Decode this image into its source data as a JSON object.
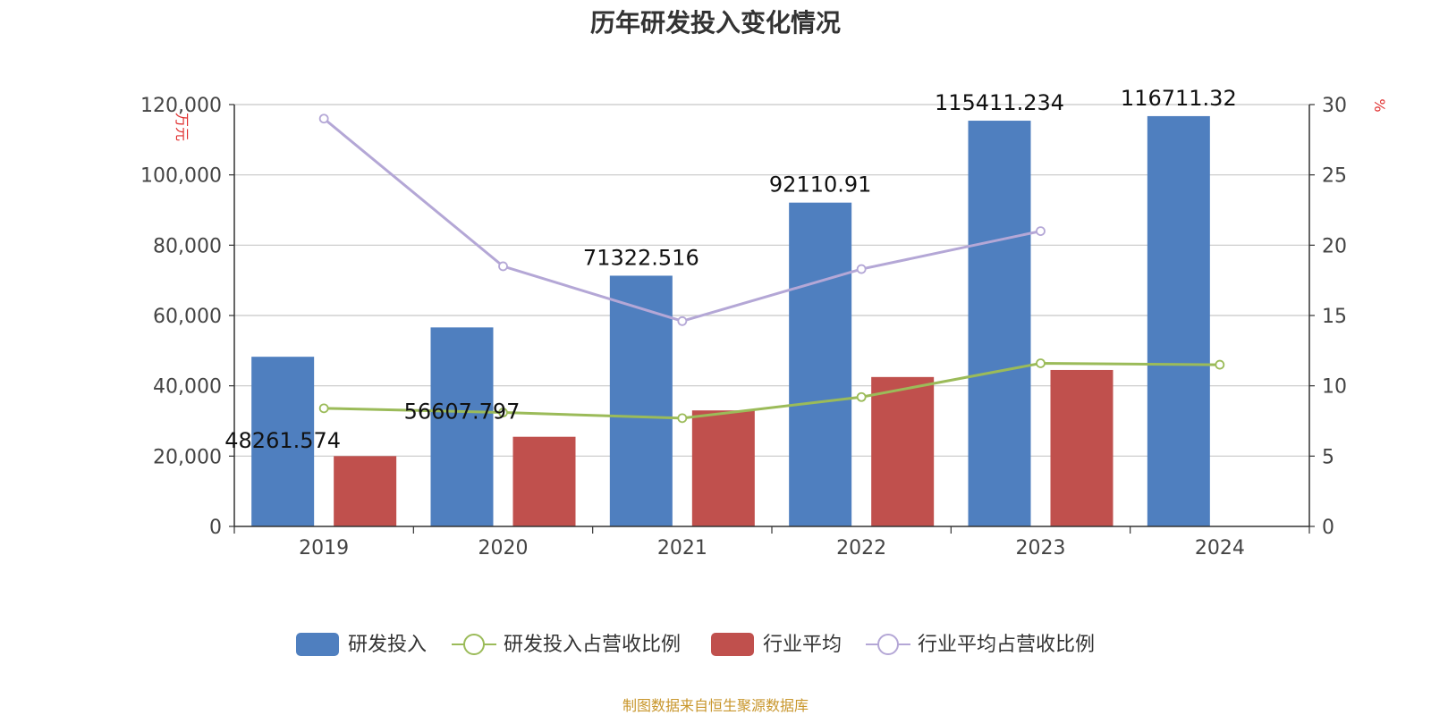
{
  "source": "制图数据来自恒生聚源数据库",
  "chart_data": {
    "type": "bar",
    "title": "历年研发投入变化情况",
    "categories": [
      "2019",
      "2020",
      "2021",
      "2022",
      "2023",
      "2024"
    ],
    "y_left": {
      "label": "万元",
      "ylim": [
        0,
        120000
      ],
      "ticks": [
        "0",
        "20,000",
        "40,000",
        "60,000",
        "80,000",
        "100,000",
        "120,000"
      ],
      "tick_values": [
        0,
        20000,
        40000,
        60000,
        80000,
        100000,
        120000
      ]
    },
    "y_right": {
      "label": "%",
      "ylim": [
        0,
        30
      ],
      "ticks": [
        "0",
        "5",
        "10",
        "15",
        "20",
        "25",
        "30"
      ],
      "tick_values": [
        0,
        5,
        10,
        15,
        20,
        25,
        30
      ]
    },
    "grid": true,
    "legend_position": "bottom",
    "series": [
      {
        "name": "研发投入",
        "type": "bar",
        "axis": "left",
        "color": "#4f7fbf",
        "values": [
          48261.574,
          56607.797,
          71322.516,
          92110.91,
          115411.234,
          116711.32
        ],
        "labels": [
          "48261.574",
          "56607.797",
          "71322.516",
          "92110.91",
          "115411.234",
          "116711.32"
        ]
      },
      {
        "name": "研发投入占营收比例",
        "type": "line",
        "axis": "right",
        "color": "#9bbb59",
        "values": [
          8.4,
          8.1,
          7.7,
          9.2,
          11.6,
          11.5
        ]
      },
      {
        "name": "行业平均",
        "type": "bar",
        "axis": "left",
        "color": "#c0504d",
        "values": [
          20000,
          25500,
          33000,
          42500,
          44500,
          null
        ]
      },
      {
        "name": "行业平均占营收比例",
        "type": "line",
        "axis": "right",
        "color": "#b4a7d6",
        "values": [
          29.0,
          18.5,
          14.6,
          18.3,
          21.0,
          null
        ]
      }
    ]
  }
}
